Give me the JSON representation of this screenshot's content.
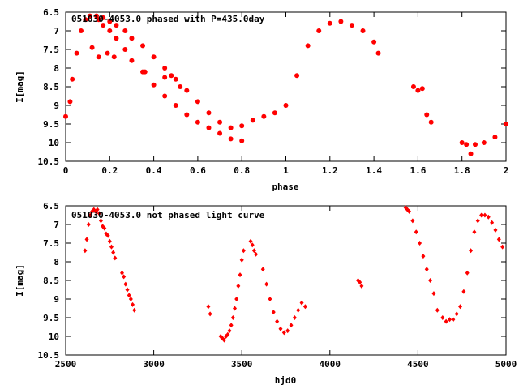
{
  "colors": {
    "points": "#ff0000",
    "axis": "#000000",
    "background": "#ffffff"
  },
  "chart_data": [
    {
      "type": "scatter",
      "title": "051030-4053.0 phased with P=435.0day",
      "xlabel": "phase",
      "ylabel": "I[mag]",
      "xlim": [
        0,
        2
      ],
      "ylim": [
        6.5,
        10.5
      ],
      "y_inverted": true,
      "xticks": [
        0,
        0.2,
        0.4,
        0.6,
        0.8,
        1,
        1.2,
        1.4,
        1.6,
        1.8,
        2
      ],
      "xtick_labels": [
        "0",
        "0.2",
        "0.4",
        "0.6",
        "0.8",
        "1",
        "1.2",
        "1.4",
        "1.6",
        "1.8",
        "2"
      ],
      "yticks": [
        6.5,
        7,
        7.5,
        8,
        8.5,
        9,
        9.5,
        10,
        10.5
      ],
      "ytick_labels": [
        "6.5",
        "7",
        "7.5",
        "8",
        "8.5",
        "9",
        "9.5",
        "10",
        "10.5"
      ],
      "grid": false,
      "x": [
        0.0,
        0.02,
        0.03,
        0.05,
        0.07,
        0.09,
        0.11,
        0.14,
        0.17,
        0.2,
        0.23,
        0.27,
        0.3,
        0.35,
        0.4,
        0.45,
        0.5,
        0.55,
        0.6,
        0.65,
        0.7,
        0.75,
        0.8,
        0.85,
        0.9,
        0.95,
        1.0,
        1.05,
        1.1,
        1.15,
        1.2,
        1.25,
        1.3,
        1.35,
        1.4,
        1.42,
        0.15,
        0.17,
        0.2,
        0.23,
        0.27,
        0.3,
        0.35,
        0.4,
        0.45,
        0.5,
        0.55,
        0.6,
        0.65,
        0.7,
        0.75,
        0.8,
        0.12,
        0.15,
        0.19,
        0.22,
        0.36,
        0.45,
        0.52,
        0.48,
        1.58,
        1.6,
        1.62,
        1.64,
        1.66,
        1.8,
        1.82,
        1.84,
        1.86,
        1.9,
        1.95,
        2.0
      ],
      "y": [
        9.3,
        8.9,
        8.3,
        7.6,
        7.0,
        6.7,
        6.6,
        6.6,
        6.65,
        6.75,
        6.85,
        7.0,
        7.2,
        7.4,
        7.7,
        8.0,
        8.3,
        8.6,
        8.9,
        9.2,
        9.45,
        9.6,
        9.55,
        9.4,
        9.3,
        9.2,
        9.0,
        8.2,
        7.4,
        7.0,
        6.8,
        6.75,
        6.85,
        7.0,
        7.3,
        7.6,
        6.7,
        6.85,
        7.0,
        7.2,
        7.5,
        7.8,
        8.1,
        8.45,
        8.75,
        9.0,
        9.25,
        9.45,
        9.6,
        9.75,
        9.9,
        9.95,
        7.45,
        7.7,
        7.6,
        7.7,
        8.1,
        8.25,
        8.5,
        8.2,
        8.5,
        8.6,
        8.55,
        9.25,
        9.45,
        10.0,
        10.05,
        10.3,
        10.05,
        10.0,
        9.85,
        9.5
      ],
      "marker": "circle",
      "series": []
    },
    {
      "type": "scatter",
      "title": "051030-4053.0 not phased light curve",
      "xlabel": "hjd0",
      "ylabel": "I[mag]",
      "xlim": [
        2500,
        5000
      ],
      "ylim": [
        6.5,
        10.5
      ],
      "y_inverted": true,
      "xticks": [
        2500,
        3000,
        3500,
        4000,
        4500,
        5000
      ],
      "xtick_labels": [
        "2500",
        "3000",
        "3500",
        "4000",
        "4500",
        "5000"
      ],
      "yticks": [
        6.5,
        7,
        7.5,
        8,
        8.5,
        9,
        9.5,
        10,
        10.5
      ],
      "ytick_labels": [
        "6.5",
        "7",
        "7.5",
        "8",
        "8.5",
        "9",
        "9.5",
        "10",
        "10.5"
      ],
      "grid": false,
      "x": [
        2610,
        2620,
        2630,
        2640,
        2650,
        2660,
        2670,
        2680,
        2690,
        2700,
        2710,
        2720,
        2730,
        2740,
        2750,
        2760,
        2770,
        2780,
        2820,
        2830,
        2840,
        2850,
        2860,
        2870,
        2880,
        2890,
        3310,
        3320,
        3380,
        3390,
        3400,
        3410,
        3420,
        3430,
        3440,
        3450,
        3460,
        3470,
        3480,
        3490,
        3500,
        3510,
        3550,
        3560,
        3570,
        3580,
        3620,
        3640,
        3660,
        3680,
        3700,
        3720,
        3740,
        3760,
        3780,
        3800,
        3820,
        3840,
        3860,
        4160,
        4170,
        4180,
        4430,
        4440,
        4450,
        4470,
        4490,
        4510,
        4530,
        4550,
        4570,
        4590,
        4610,
        4640,
        4660,
        4680,
        4700,
        4720,
        4740,
        4760,
        4780,
        4800,
        4820,
        4840,
        4860,
        4880,
        4900,
        4920,
        4940,
        4960,
        4980
      ],
      "y": [
        7.7,
        7.4,
        7.0,
        6.75,
        6.65,
        6.6,
        6.65,
        6.6,
        6.7,
        6.9,
        7.05,
        7.1,
        7.25,
        7.3,
        7.45,
        7.6,
        7.75,
        7.9,
        8.3,
        8.4,
        8.6,
        8.75,
        8.9,
        9.0,
        9.15,
        9.3,
        9.2,
        9.4,
        10.0,
        10.05,
        10.1,
        10.0,
        9.95,
        9.85,
        9.7,
        9.5,
        9.25,
        9.0,
        8.65,
        8.35,
        7.95,
        7.7,
        7.45,
        7.55,
        7.7,
        7.8,
        8.2,
        8.6,
        9.0,
        9.35,
        9.6,
        9.8,
        9.9,
        9.85,
        9.7,
        9.5,
        9.3,
        9.1,
        9.2,
        8.5,
        8.55,
        8.65,
        6.55,
        6.6,
        6.65,
        6.9,
        7.2,
        7.5,
        7.85,
        8.2,
        8.5,
        8.85,
        9.3,
        9.5,
        9.6,
        9.55,
        9.55,
        9.4,
        9.2,
        8.8,
        8.3,
        7.7,
        7.2,
        6.9,
        6.75,
        6.75,
        6.8,
        6.95,
        7.15,
        7.4,
        7.6
      ],
      "marker": "diamond",
      "series": []
    }
  ]
}
